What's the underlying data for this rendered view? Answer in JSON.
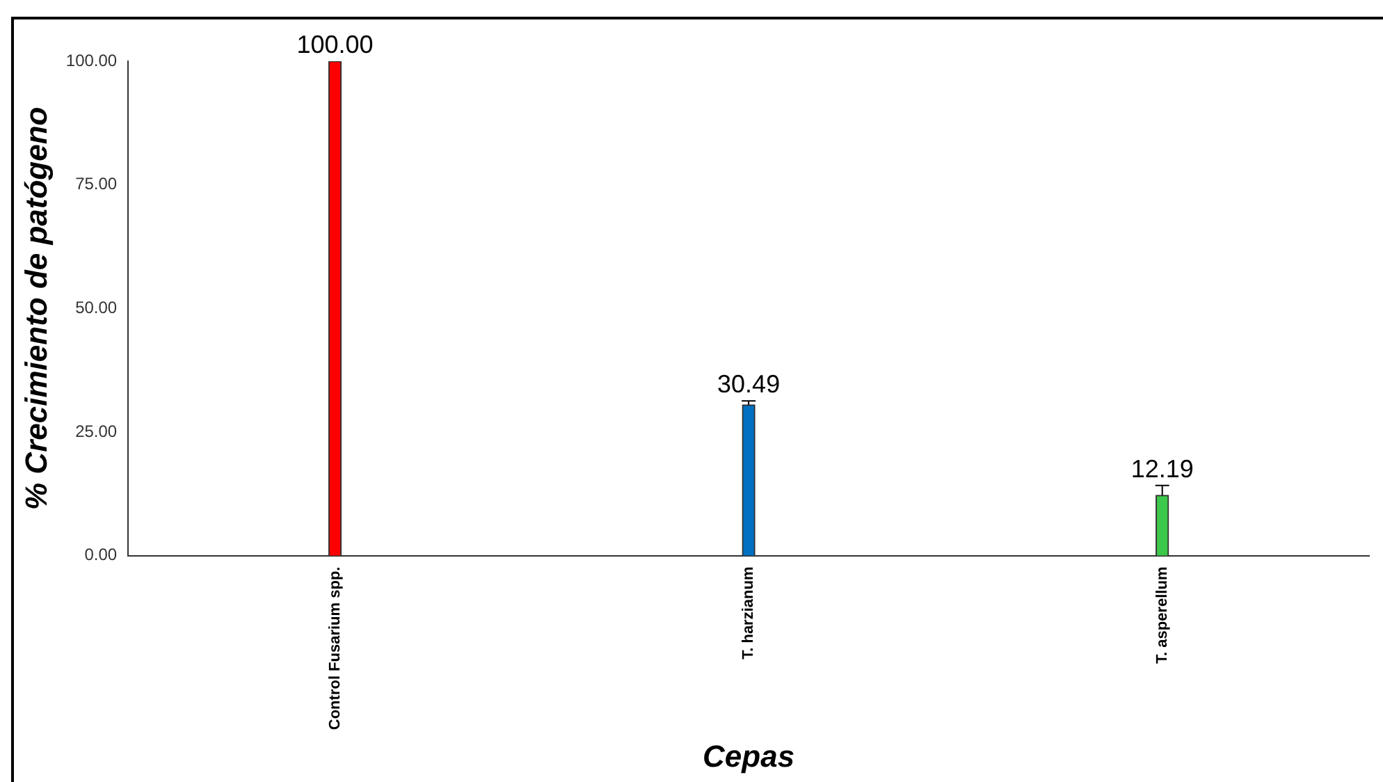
{
  "chart_data": {
    "type": "bar",
    "xlabel": "Cepas",
    "ylabel": "% Crecimiento de patógeno",
    "categories": [
      "Control Fusarium spp.",
      "T. harzianum",
      "T. asperellum"
    ],
    "values": [
      100.0,
      30.49,
      12.19
    ],
    "colors": [
      "#ff0000",
      "#0070c0",
      "#3cc84a"
    ],
    "errors": [
      null,
      [
        30.49,
        31.3
      ],
      [
        12.19,
        14.2
      ]
    ],
    "value_labels": [
      "100.00",
      "30.49",
      "12.19"
    ],
    "ylim": [
      0,
      100
    ],
    "yticks": [
      {
        "value": 0,
        "label": "0.00"
      },
      {
        "value": 25,
        "label": "25.00"
      },
      {
        "value": 50,
        "label": "50.00"
      },
      {
        "value": 75,
        "label": "75.00"
      },
      {
        "value": 100,
        "label": "100.00"
      }
    ],
    "grid": false,
    "legend": false
  }
}
